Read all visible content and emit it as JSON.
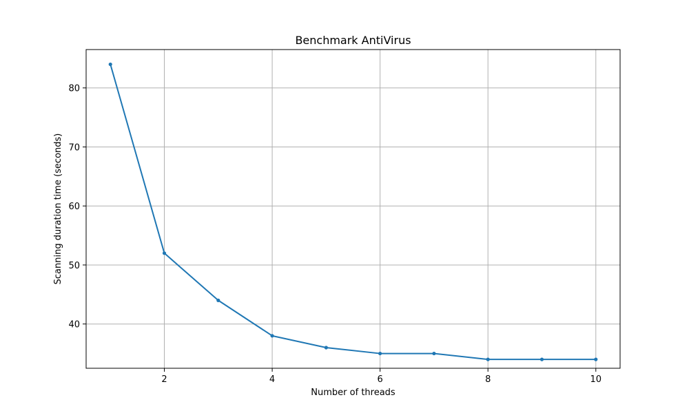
{
  "chart_data": {
    "type": "line",
    "title": "Benchmark AntiVirus",
    "xlabel": "Number of threads",
    "ylabel": "Scanning duration time (seconds)",
    "x": [
      1,
      2,
      3,
      4,
      5,
      6,
      7,
      8,
      9,
      10
    ],
    "series": [
      {
        "values": [
          84,
          52,
          44,
          38,
          36,
          35,
          35,
          34,
          34,
          34
        ]
      }
    ],
    "xlim": [
      0.55,
      10.45
    ],
    "ylim": [
      32.5,
      86.5
    ],
    "xticks": [
      "2",
      "4",
      "6",
      "8",
      "10"
    ],
    "yticks": [
      "40",
      "50",
      "60",
      "70",
      "80"
    ],
    "grid": true,
    "line_color": "#1f77b4",
    "marker_color": "#1f77b4"
  }
}
